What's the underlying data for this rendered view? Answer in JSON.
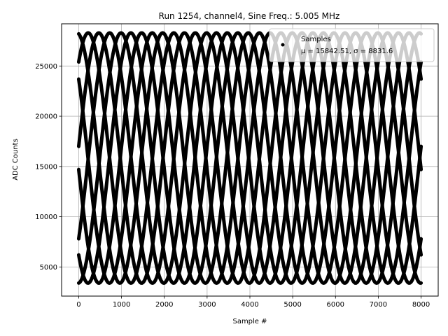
{
  "chart_data": {
    "type": "scatter",
    "title": "Run 1254, channel4, Sine Freq.: 5.005 MHz",
    "xlabel": "Sample #",
    "ylabel": "ADC Counts",
    "xlim": [
      -400,
      8400
    ],
    "ylim": [
      2100,
      29200
    ],
    "xticks": [
      0,
      1000,
      2000,
      3000,
      4000,
      5000,
      6000,
      7000,
      8000
    ],
    "yticks": [
      5000,
      10000,
      15000,
      20000,
      25000
    ],
    "grid": true,
    "legend": {
      "placement": "upper-right",
      "label": "Samples",
      "stats": "μ = 15842.51, σ = 8831.6"
    },
    "series": [
      {
        "name": "Samples",
        "color": "#000000",
        "model": {
          "mean": 15842.51,
          "amplitude": 12450,
          "period_samples": 2000,
          "phases_at_zero": [
            28200,
            25400,
            23700,
            17000,
            14700,
            7800,
            6200,
            3400
          ],
          "x_range": [
            0,
            8000
          ]
        }
      }
    ]
  }
}
